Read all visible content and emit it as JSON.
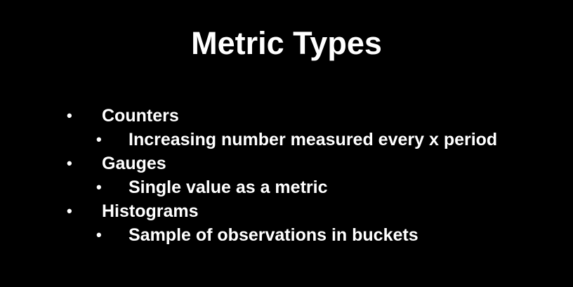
{
  "slide": {
    "title": "Metric Types",
    "bullet_glyph": "•",
    "items": [
      {
        "label": "Counters",
        "subitems": [
          "Increasing number measured every x period"
        ]
      },
      {
        "label": "Gauges",
        "subitems": [
          "Single value as a metric"
        ]
      },
      {
        "label": "Histograms",
        "subitems": [
          "Sample of observations in buckets"
        ]
      }
    ]
  },
  "colors": {
    "background": "#000000",
    "text": "#ffffff"
  }
}
